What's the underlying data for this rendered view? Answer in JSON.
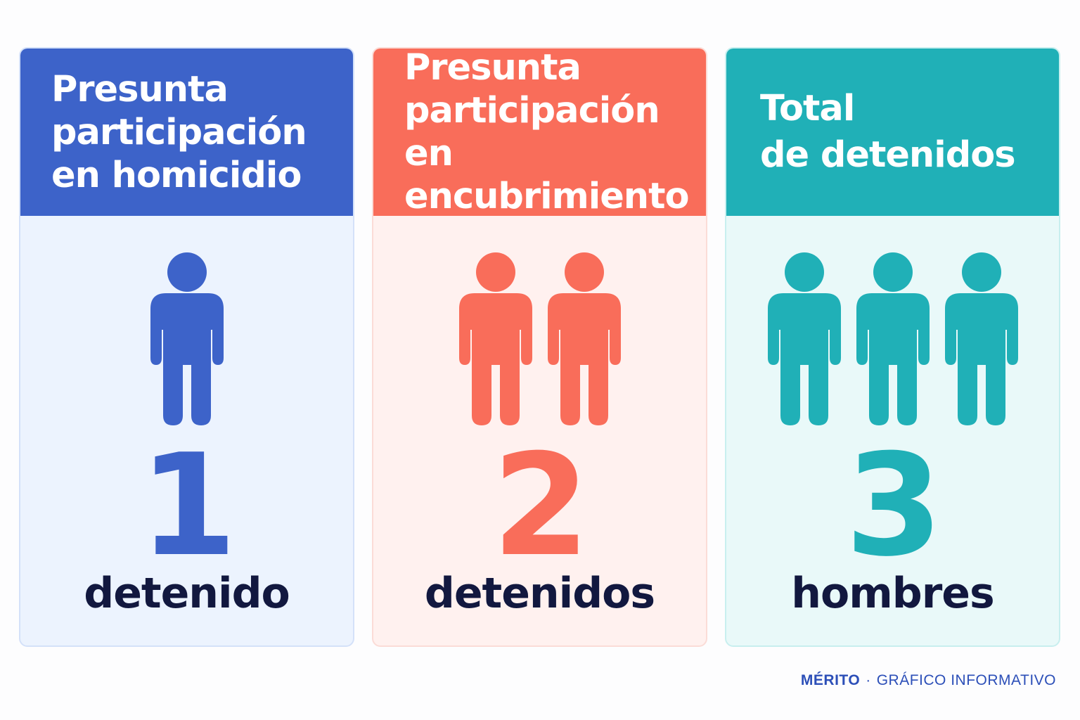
{
  "colors": {
    "blue": "#3d63c9",
    "coral": "#f96d5a",
    "teal": "#20b0b7",
    "blue_bg": "#ecf3fe",
    "coral_bg": "#fff1ef",
    "teal_bg": "#e9f9f9",
    "blue_border": "#d4e1f9",
    "coral_border": "#fbdcd7",
    "teal_border": "#c8efef",
    "unit_text": "#12183f"
  },
  "cards": [
    {
      "title": "Presunta\nparticipación\nen homicidio",
      "count": 1,
      "number": "1",
      "unit": "detenido",
      "icon": "person-icon",
      "color_key": "blue"
    },
    {
      "title": "Presunta\nparticipación\nen encubrimiento",
      "count": 2,
      "number": "2",
      "unit": "detenidos",
      "icon": "person-icon",
      "color_key": "coral"
    },
    {
      "title": "Total\nde detenidos",
      "count": 3,
      "number": "3",
      "unit": "hombres",
      "icon": "person-icon",
      "color_key": "teal"
    }
  ],
  "footer": {
    "brand": "MÉRITO",
    "separator": "·",
    "label": "GRÁFICO INFORMATIVO"
  }
}
